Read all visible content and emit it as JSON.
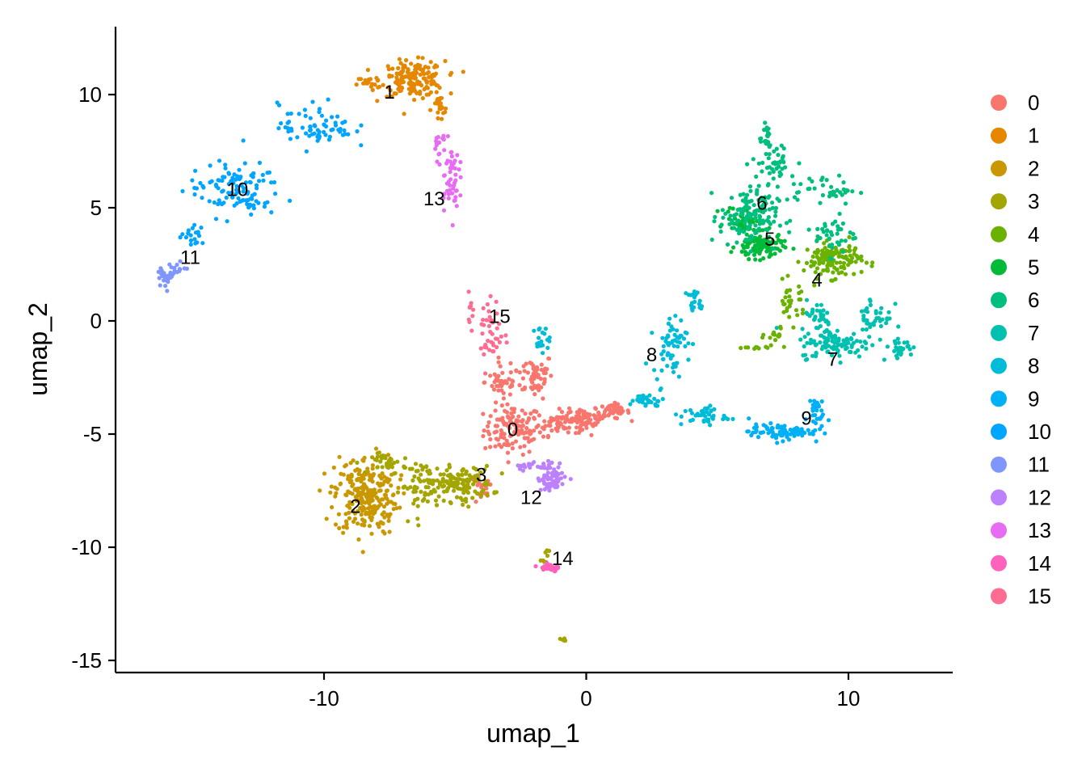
{
  "chart_data": {
    "type": "scatter",
    "title": "",
    "xlabel": "umap_1",
    "ylabel": "umap_2",
    "xlim": [
      -18,
      14
    ],
    "ylim": [
      -16.5,
      13
    ],
    "x_ticks": [
      -10,
      0,
      10
    ],
    "y_ticks": [
      10,
      5,
      0,
      -5,
      -10,
      -15
    ],
    "x_tick_labels": [
      "-10",
      "0",
      "10"
    ],
    "y_tick_labels": [
      "10",
      "5",
      "0",
      "-5",
      "-10",
      "-15"
    ],
    "grid": false,
    "legend_position": "right",
    "series": [
      {
        "name": "0",
        "color": "#F8766D",
        "centroid": [
          -2.8,
          -4.8
        ],
        "shape": [
          [
            -2.8,
            -4.8,
            1.0,
            1.0,
            120
          ],
          [
            -2.0,
            -2.4,
            0.7,
            0.9,
            60
          ],
          [
            -1.0,
            -4.5,
            0.8,
            0.5,
            60
          ],
          [
            0.0,
            -4.3,
            0.7,
            0.35,
            60
          ],
          [
            1.0,
            -4.0,
            0.6,
            0.3,
            45
          ],
          [
            -3.2,
            -2.7,
            0.6,
            0.6,
            40
          ],
          [
            -4.0,
            -7.5,
            0.4,
            0.6,
            20
          ]
        ]
      },
      {
        "name": "1",
        "color": "#E58700",
        "centroid": [
          -7.4,
          10.2
        ],
        "shape": [
          [
            -6.6,
            10.7,
            1.1,
            0.7,
            170
          ],
          [
            -5.6,
            9.3,
            0.3,
            0.6,
            20
          ],
          [
            -8.3,
            10.5,
            0.4,
            0.3,
            15
          ]
        ]
      },
      {
        "name": "2",
        "color": "#C99800",
        "centroid": [
          -8.8,
          -8.2
        ],
        "shape": [
          [
            -8.4,
            -7.7,
            1.1,
            1.6,
            260
          ]
        ]
      },
      {
        "name": "3",
        "color": "#A3A500",
        "centroid": [
          -4.0,
          -6.8
        ],
        "shape": [
          [
            -4.8,
            -7.2,
            1.1,
            0.7,
            130
          ],
          [
            -6.2,
            -7.3,
            0.8,
            1.0,
            60
          ],
          [
            -7.5,
            -6.3,
            0.6,
            0.4,
            30
          ],
          [
            -0.9,
            -14.1,
            0.1,
            0.1,
            5
          ],
          [
            -1.5,
            -10.3,
            0.2,
            0.3,
            8
          ]
        ]
      },
      {
        "name": "4",
        "color": "#6BB100",
        "centroid": [
          8.8,
          1.8
        ],
        "shape": [
          [
            9.4,
            2.7,
            1.0,
            0.7,
            130
          ],
          [
            7.8,
            0.8,
            0.5,
            0.8,
            30
          ],
          [
            7.3,
            -0.6,
            0.4,
            0.4,
            15
          ],
          [
            6.6,
            -1.2,
            0.5,
            0.1,
            10
          ]
        ]
      },
      {
        "name": "5",
        "color": "#00BA38",
        "centroid": [
          6.9,
          3.6
        ],
        "shape": [
          [
            6.6,
            3.3,
            0.8,
            0.5,
            110
          ],
          [
            6.0,
            4.5,
            0.6,
            0.5,
            50
          ]
        ]
      },
      {
        "name": "6",
        "color": "#00BF7D",
        "centroid": [
          6.6,
          5.2
        ],
        "shape": [
          [
            6.2,
            4.6,
            1.0,
            1.2,
            130
          ],
          [
            7.2,
            7.0,
            0.8,
            0.8,
            40
          ],
          [
            9.0,
            5.8,
            1.2,
            0.6,
            40
          ],
          [
            9.5,
            3.8,
            0.7,
            0.8,
            40
          ],
          [
            6.8,
            8.2,
            0.3,
            0.8,
            20
          ]
        ]
      },
      {
        "name": "7",
        "color": "#00C0AF",
        "centroid": [
          9.3,
          -1.7
        ],
        "shape": [
          [
            9.5,
            -1.0,
            1.2,
            0.6,
            110
          ],
          [
            11.0,
            0.2,
            0.6,
            1.0,
            40
          ],
          [
            12.0,
            -1.2,
            0.4,
            0.3,
            30
          ],
          [
            8.8,
            0.2,
            0.5,
            0.6,
            30
          ]
        ]
      },
      {
        "name": "8",
        "color": "#00BCD8",
        "centroid": [
          2.5,
          -1.5
        ],
        "shape": [
          [
            3.2,
            -1.0,
            0.6,
            1.2,
            60
          ],
          [
            4.2,
            0.8,
            0.3,
            0.5,
            20
          ],
          [
            2.3,
            -3.5,
            0.6,
            0.3,
            30
          ],
          [
            4.5,
            -4.2,
            0.8,
            0.4,
            40
          ],
          [
            -1.7,
            -0.8,
            0.3,
            0.5,
            20
          ]
        ]
      },
      {
        "name": "9",
        "color": "#00B0F6",
        "centroid": [
          8.4,
          -4.3
        ],
        "shape": [
          [
            7.4,
            -4.9,
            1.1,
            0.3,
            90
          ],
          [
            8.7,
            -4.0,
            0.3,
            0.7,
            30
          ]
        ]
      },
      {
        "name": "10",
        "color": "#00A5FF",
        "centroid": [
          -13.4,
          5.8
        ],
        "shape": [
          [
            -13.4,
            5.8,
            1.6,
            1.1,
            110
          ],
          [
            -10.3,
            8.6,
            1.3,
            0.9,
            70
          ],
          [
            -15.0,
            3.8,
            0.4,
            0.4,
            20
          ]
        ]
      },
      {
        "name": "11",
        "color": "#7F96FF",
        "centroid": [
          -15.2,
          2.7
        ],
        "shape": [
          [
            -16.0,
            2.0,
            0.3,
            0.4,
            30
          ],
          [
            -15.5,
            2.4,
            0.3,
            0.3,
            10
          ]
        ]
      },
      {
        "name": "12",
        "color": "#BC81FF",
        "centroid": [
          -2.0,
          -7.2
        ],
        "shape": [
          [
            -1.3,
            -6.9,
            0.5,
            0.6,
            70
          ],
          [
            -2.2,
            -6.4,
            0.5,
            0.2,
            15
          ]
        ]
      },
      {
        "name": "13",
        "color": "#E76BF3",
        "centroid": [
          -5.2,
          5.1
        ],
        "shape": [
          [
            -5.2,
            6.4,
            0.3,
            1.3,
            50
          ],
          [
            -5.6,
            7.9,
            0.2,
            0.5,
            15
          ]
        ]
      },
      {
        "name": "14",
        "color": "#FF62BC",
        "centroid": [
          -0.7,
          -10.5
        ],
        "shape": [
          [
            -1.4,
            -10.9,
            0.4,
            0.2,
            30
          ]
        ]
      },
      {
        "name": "15",
        "color": "#FF6C91",
        "centroid": [
          -3.2,
          -0.2
        ],
        "shape": [
          [
            -3.6,
            -0.5,
            0.4,
            1.4,
            40
          ],
          [
            -4.4,
            0.6,
            0.1,
            0.6,
            10
          ]
        ]
      }
    ],
    "cluster_labels": [
      {
        "text": "0",
        "x": -2.8,
        "y": -4.8
      },
      {
        "text": "1",
        "x": -7.5,
        "y": 10.1
      },
      {
        "text": "2",
        "x": -8.8,
        "y": -8.2
      },
      {
        "text": "3",
        "x": -4.0,
        "y": -6.8
      },
      {
        "text": "4",
        "x": 8.8,
        "y": 1.8
      },
      {
        "text": "5",
        "x": 7.0,
        "y": 3.6
      },
      {
        "text": "6",
        "x": 6.7,
        "y": 5.2
      },
      {
        "text": "7",
        "x": 9.4,
        "y": -1.7
      },
      {
        "text": "8",
        "x": 2.5,
        "y": -1.5
      },
      {
        "text": "9",
        "x": 8.4,
        "y": -4.3
      },
      {
        "text": "10",
        "x": -13.3,
        "y": 5.8
      },
      {
        "text": "11",
        "x": -15.1,
        "y": 2.8
      },
      {
        "text": "12",
        "x": -2.1,
        "y": -7.8
      },
      {
        "text": "13",
        "x": -5.8,
        "y": 5.4
      },
      {
        "text": "14",
        "x": -0.9,
        "y": -10.5
      },
      {
        "text": "15",
        "x": -3.3,
        "y": 0.2
      }
    ]
  }
}
